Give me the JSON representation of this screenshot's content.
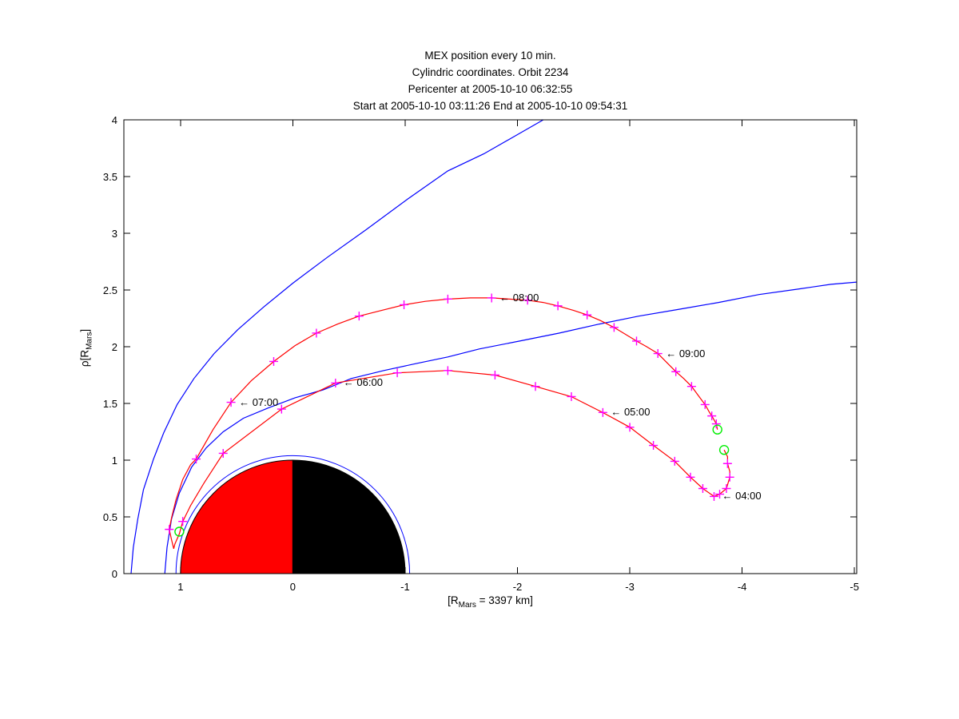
{
  "chart_data": {
    "type": "line",
    "title_lines": [
      "MEX position every 10 min.",
      "Cylindric coordinates. Orbit 2234",
      "Pericenter at 2005-10-10 06:32:55",
      "Start at 2005-10-10 03:11:26 End at 2005-10-10 09:54:31"
    ],
    "xlabel": "[R_Mars = 3397 km]",
    "ylabel": "rho[R_Mars]",
    "xlabel_parts": {
      "pre": "[R",
      "sub": "Mars",
      "post": " = 3397 km]"
    },
    "ylabel_parts": {
      "pre": "ρ[R",
      "sub": "Mars",
      "post": "]"
    },
    "xlim": [
      1.504,
      -5.02
    ],
    "ylim": [
      0,
      4
    ],
    "x_axis_reversed": true,
    "grid": false,
    "x_ticks": {
      "values": [
        1,
        0,
        -1,
        -2,
        -3,
        -4,
        -5
      ],
      "labels": [
        "1",
        "0",
        "-1",
        "-2",
        "-3",
        "-4",
        "-5"
      ]
    },
    "y_ticks": {
      "values": [
        0,
        0.5,
        1,
        1.5,
        2,
        2.5,
        3,
        3.5,
        4
      ],
      "labels": [
        "0",
        "0.5",
        "1",
        "1.5",
        "2",
        "2.5",
        "3",
        "3.5",
        "4"
      ]
    },
    "colors": {
      "orbit": "#ff0000",
      "boundaries": "#0000ff",
      "markers": "#ff00ff",
      "events": "#00ee00",
      "axes": "#000000"
    },
    "mars": {
      "radius": 1.0,
      "dayside_color": "#ff0000",
      "nightside_color": "#000000",
      "outline_color": "#000000",
      "boundary_circle_radius": 1.04
    },
    "series": [
      {
        "name": "bow-shock",
        "points": [
          [
            1.44,
            0.0
          ],
          [
            1.42,
            0.23
          ],
          [
            1.38,
            0.48
          ],
          [
            1.33,
            0.74
          ],
          [
            1.24,
            1.01
          ],
          [
            1.15,
            1.24
          ],
          [
            1.03,
            1.49
          ],
          [
            0.88,
            1.72
          ],
          [
            0.7,
            1.94
          ],
          [
            0.49,
            2.15
          ],
          [
            0.26,
            2.35
          ],
          [
            0.0,
            2.56
          ],
          [
            -0.31,
            2.79
          ],
          [
            -0.65,
            3.03
          ],
          [
            -1.02,
            3.3
          ],
          [
            -1.38,
            3.55
          ],
          [
            -1.7,
            3.7
          ],
          [
            -2.0,
            3.87
          ],
          [
            -2.23,
            4.0
          ]
        ]
      },
      {
        "name": "magnetopause",
        "points": [
          [
            1.14,
            0.0
          ],
          [
            1.12,
            0.23
          ],
          [
            1.08,
            0.48
          ],
          [
            1.01,
            0.71
          ],
          [
            0.9,
            0.94
          ],
          [
            0.77,
            1.11
          ],
          [
            0.62,
            1.25
          ],
          [
            0.44,
            1.37
          ],
          [
            0.22,
            1.46
          ],
          [
            -0.02,
            1.55
          ],
          [
            -0.27,
            1.62
          ],
          [
            -0.52,
            1.72
          ],
          [
            -0.81,
            1.79
          ],
          [
            -1.09,
            1.85
          ],
          [
            -1.38,
            1.91
          ],
          [
            -1.66,
            1.98
          ],
          [
            -2.02,
            2.05
          ],
          [
            -2.37,
            2.12
          ],
          [
            -2.73,
            2.2
          ],
          [
            -3.08,
            2.27
          ],
          [
            -3.44,
            2.33
          ],
          [
            -3.79,
            2.39
          ],
          [
            -4.15,
            2.46
          ],
          [
            -4.51,
            2.51
          ],
          [
            -4.79,
            2.55
          ],
          [
            -5.02,
            2.57
          ]
        ]
      },
      {
        "name": "orbit",
        "points": [
          [
            -3.84,
            1.09
          ],
          [
            -3.87,
            1.03
          ],
          [
            -3.87,
            0.97
          ],
          [
            -3.89,
            0.9
          ],
          [
            -3.89,
            0.85
          ],
          [
            -3.86,
            0.75
          ],
          [
            -3.8,
            0.7
          ],
          [
            -3.75,
            0.68
          ],
          [
            -3.65,
            0.75
          ],
          [
            -3.54,
            0.85
          ],
          [
            -3.4,
            0.99
          ],
          [
            -3.21,
            1.13
          ],
          [
            -3.0,
            1.29
          ],
          [
            -2.76,
            1.42
          ],
          [
            -2.48,
            1.56
          ],
          [
            -2.16,
            1.65
          ],
          [
            -1.8,
            1.75
          ],
          [
            -1.38,
            1.79
          ],
          [
            -0.93,
            1.77
          ],
          [
            -0.38,
            1.68
          ],
          [
            0.1,
            1.45
          ],
          [
            0.62,
            1.06
          ],
          [
            0.79,
            0.8
          ],
          [
            0.91,
            0.6
          ],
          [
            0.98,
            0.46
          ],
          [
            1.01,
            0.35
          ],
          [
            1.05,
            0.26
          ],
          [
            1.06,
            0.22
          ],
          [
            1.08,
            0.3
          ],
          [
            1.1,
            0.39
          ],
          [
            1.08,
            0.49
          ],
          [
            1.04,
            0.65
          ],
          [
            0.98,
            0.83
          ],
          [
            0.91,
            0.96
          ],
          [
            0.86,
            1.01
          ],
          [
            0.71,
            1.27
          ],
          [
            0.55,
            1.51
          ],
          [
            0.37,
            1.7
          ],
          [
            0.17,
            1.87
          ],
          [
            -0.02,
            2.01
          ],
          [
            -0.21,
            2.12
          ],
          [
            -0.4,
            2.2
          ],
          [
            -0.59,
            2.27
          ],
          [
            -0.79,
            2.32
          ],
          [
            -0.99,
            2.37
          ],
          [
            -1.18,
            2.4
          ],
          [
            -1.38,
            2.42
          ],
          [
            -1.58,
            2.43
          ],
          [
            -1.77,
            2.43
          ],
          [
            -1.93,
            2.42
          ],
          [
            -2.09,
            2.41
          ],
          [
            -2.23,
            2.39
          ],
          [
            -2.36,
            2.36
          ],
          [
            -2.5,
            2.32
          ],
          [
            -2.62,
            2.28
          ],
          [
            -2.74,
            2.23
          ],
          [
            -2.86,
            2.17
          ],
          [
            -2.96,
            2.11
          ],
          [
            -3.06,
            2.05
          ],
          [
            -3.15,
            2.0
          ],
          [
            -3.25,
            1.94
          ],
          [
            -3.33,
            1.86
          ],
          [
            -3.41,
            1.78
          ],
          [
            -3.48,
            1.72
          ],
          [
            -3.55,
            1.65
          ],
          [
            -3.61,
            1.57
          ],
          [
            -3.67,
            1.49
          ],
          [
            -3.71,
            1.42
          ],
          [
            -3.73,
            1.39
          ],
          [
            -3.77,
            1.32
          ],
          [
            -3.78,
            1.27
          ]
        ]
      }
    ],
    "orbit_markers": [
      [
        -3.87,
        0.97
      ],
      [
        -3.89,
        0.85
      ],
      [
        -3.86,
        0.75
      ],
      [
        -3.8,
        0.7
      ],
      [
        -3.75,
        0.68
      ],
      [
        -3.65,
        0.75
      ],
      [
        -3.54,
        0.85
      ],
      [
        -3.4,
        0.99
      ],
      [
        -3.21,
        1.13
      ],
      [
        -3.0,
        1.29
      ],
      [
        -2.76,
        1.42
      ],
      [
        -2.48,
        1.56
      ],
      [
        -2.16,
        1.65
      ],
      [
        -1.8,
        1.75
      ],
      [
        -1.38,
        1.79
      ],
      [
        -0.93,
        1.77
      ],
      [
        -0.38,
        1.68
      ],
      [
        0.1,
        1.45
      ],
      [
        0.62,
        1.06
      ],
      [
        0.98,
        0.46
      ],
      [
        1.1,
        0.39
      ],
      [
        0.86,
        1.01
      ],
      [
        0.55,
        1.51
      ],
      [
        0.17,
        1.87
      ],
      [
        -0.21,
        2.12
      ],
      [
        -0.59,
        2.27
      ],
      [
        -0.99,
        2.37
      ],
      [
        -1.38,
        2.42
      ],
      [
        -1.77,
        2.43
      ],
      [
        -2.09,
        2.41
      ],
      [
        -2.36,
        2.36
      ],
      [
        -2.62,
        2.28
      ],
      [
        -2.86,
        2.17
      ],
      [
        -3.06,
        2.05
      ],
      [
        -3.25,
        1.94
      ],
      [
        -3.41,
        1.78
      ],
      [
        -3.55,
        1.65
      ],
      [
        -3.67,
        1.49
      ],
      [
        -3.73,
        1.39
      ],
      [
        -3.77,
        1.32
      ]
    ],
    "label_arrow": "←",
    "time_labels": [
      {
        "time": "04:00",
        "x": -3.75,
        "rho": 0.68
      },
      {
        "time": "05:00",
        "x": -2.76,
        "rho": 1.42
      },
      {
        "time": "06:00",
        "x": -0.38,
        "rho": 1.68
      },
      {
        "time": "07:00",
        "x": 0.55,
        "rho": 1.51
      },
      {
        "time": "08:00",
        "x": -1.77,
        "rho": 2.43
      },
      {
        "time": "09:00",
        "x": -3.25,
        "rho": 1.94
      }
    ],
    "events": [
      {
        "name": "start",
        "x": -3.84,
        "rho": 1.09
      },
      {
        "name": "end",
        "x": -3.78,
        "rho": 1.27
      },
      {
        "name": "pericenter",
        "x": 1.01,
        "rho": 0.37
      }
    ]
  }
}
